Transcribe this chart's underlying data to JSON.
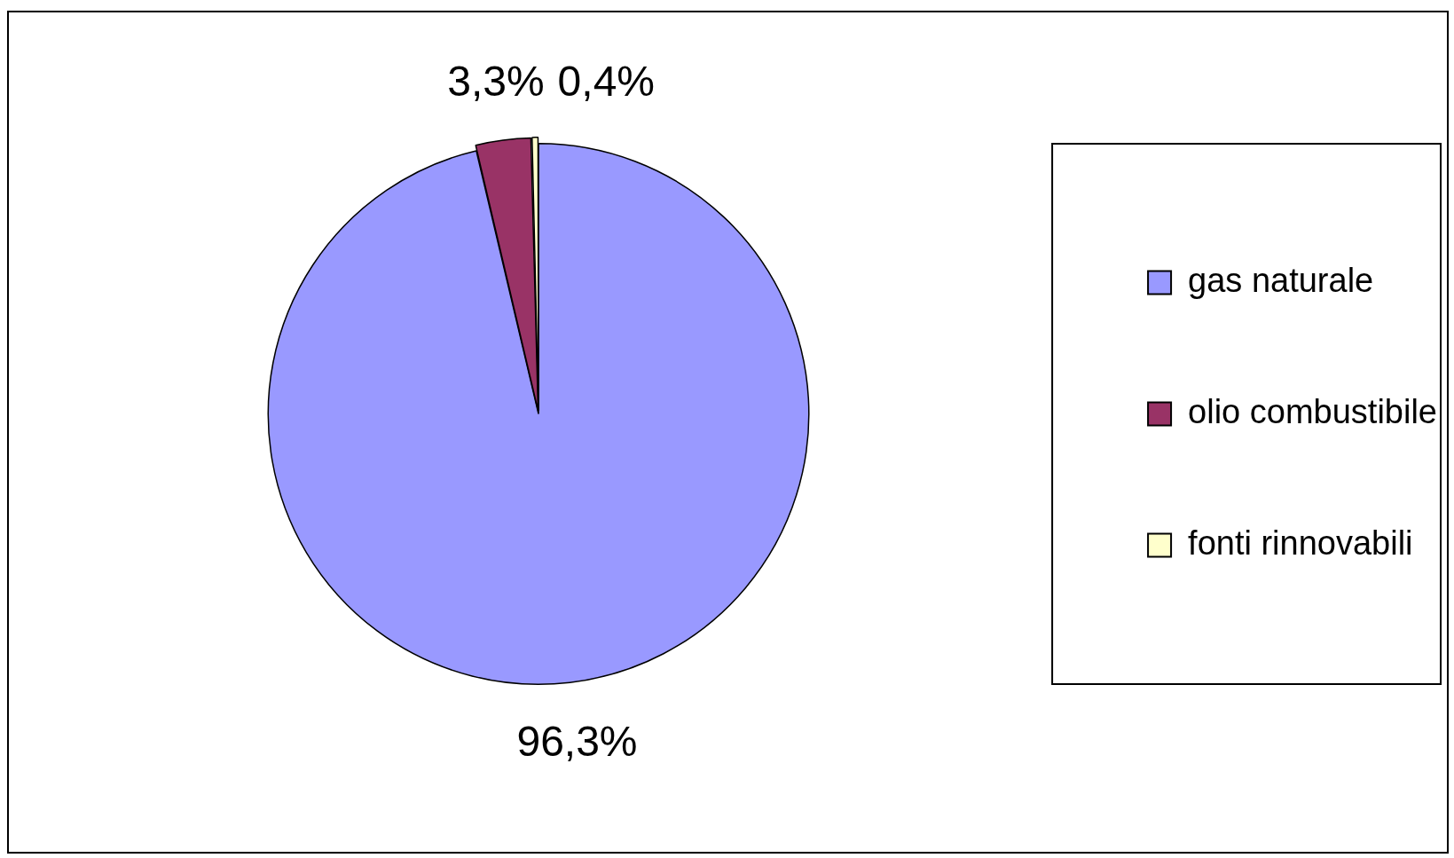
{
  "chart_data": {
    "type": "pie",
    "categories": [
      "gas naturale",
      "olio combustibile",
      "fonti rinnovabili"
    ],
    "values": [
      96.3,
      3.3,
      0.4
    ],
    "colors": [
      "#9999ff",
      "#993366",
      "#ffffcc"
    ],
    "value_labels": [
      "96,3%",
      "3,3%",
      "0,4%"
    ],
    "legend": "right"
  }
}
